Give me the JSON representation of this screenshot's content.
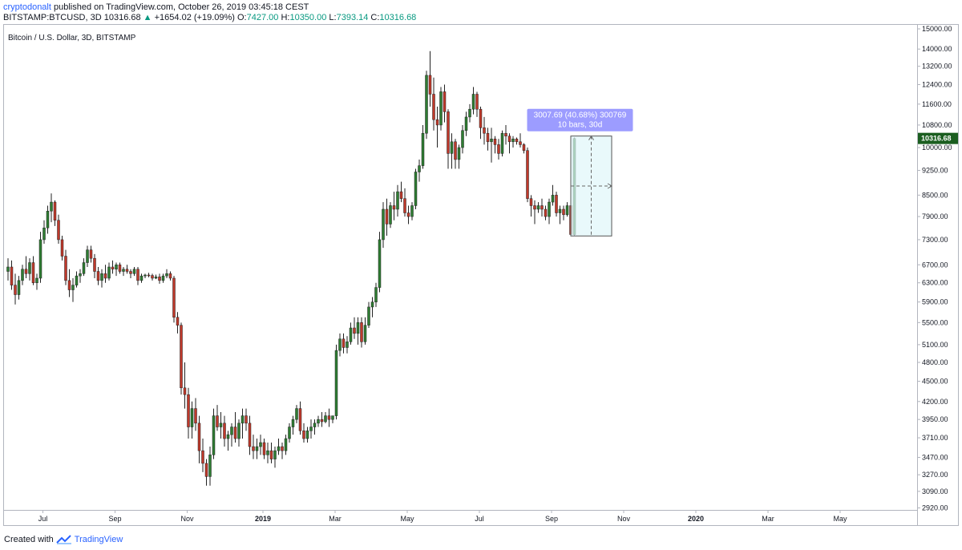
{
  "header": {
    "author": "cryptodonalt",
    "published_text": "published on TradingView.com, October 26, 2019 03:45:18 CEST",
    "symbol": "BITSTAMP:BTCUSD, 3D",
    "last": "10316.68",
    "change": "+1654.02 (+19.09%)",
    "o_label": "O:",
    "o_value": "7427.00",
    "h_label": "H:",
    "h_value": "10350.00",
    "l_label": "L:",
    "l_value": "7393.14",
    "c_label": "C:",
    "c_value": "10316.68"
  },
  "footer": {
    "created_with": "Created with",
    "brand": "TradingView"
  },
  "colors": {
    "up": "#26a69a",
    "up_body": "#2e7d32",
    "down_body": "#c0392b",
    "wick": "#222222",
    "price_tag": "#1b5e20",
    "measure_label_bg": "#9c9cff",
    "measure_box": "#e0f7fa"
  },
  "chart_data": {
    "type": "candlestick",
    "title": "Bitcoin / U.S. Dollar, 3D, BITSTAMP",
    "y_scale": "log",
    "ylim": [
      2900,
      15000
    ],
    "y_ticks": [
      15000,
      14000,
      13200,
      12400,
      11600,
      10800,
      10000,
      9250,
      8500,
      7900,
      7300,
      6700,
      6300,
      5900,
      5500,
      5100,
      4800,
      4500,
      4200,
      3950,
      3710,
      3470,
      3270,
      3090,
      2920
    ],
    "y_tick_labels": [
      "15000.00",
      "14000.00",
      "13200.00",
      "12400.00",
      "11600.00",
      "10800.00",
      "10000.00",
      "9250.00",
      "8500.00",
      "7900.00",
      "7300.00",
      "6700.00",
      "6300.00",
      "5900.00",
      "5500.00",
      "5100.00",
      "4800.00",
      "4500.00",
      "4200.00",
      "3950.00",
      "3710.00",
      "3470.00",
      "3270.00",
      "3090.00",
      "2920.00"
    ],
    "x_ticks": [
      {
        "label": "Jul",
        "bar": 7
      },
      {
        "label": "Sep",
        "bar": 27
      },
      {
        "label": "Nov",
        "bar": 47
      },
      {
        "label": "2019",
        "bar": 68
      },
      {
        "label": "Mar",
        "bar": 88
      },
      {
        "label": "May",
        "bar": 108
      },
      {
        "label": "Jul",
        "bar": 128
      },
      {
        "label": "Sep",
        "bar": 148
      },
      {
        "label": "Nov",
        "bar": 168
      },
      {
        "label": "2020",
        "bar": 188
      },
      {
        "label": "Mar",
        "bar": 208
      },
      {
        "label": "May",
        "bar": 228
      }
    ],
    "last_price": 10316.68,
    "last_price_label": "10316.68",
    "first_bar_date": "2018-06-23",
    "bar_period_days": 3,
    "ohlc": [
      [
        6550,
        6850,
        6350,
        6650
      ],
      [
        6650,
        6800,
        6150,
        6250
      ],
      [
        6250,
        6500,
        5850,
        6050
      ],
      [
        6050,
        6450,
        5950,
        6350
      ],
      [
        6350,
        6700,
        6250,
        6600
      ],
      [
        6600,
        6900,
        6400,
        6500
      ],
      [
        6500,
        6850,
        6350,
        6750
      ],
      [
        6750,
        6900,
        6250,
        6300
      ],
      [
        6300,
        6500,
        6150,
        6400
      ],
      [
        6400,
        7500,
        6300,
        7300
      ],
      [
        7300,
        7800,
        7200,
        7600
      ],
      [
        7600,
        8200,
        7450,
        8050
      ],
      [
        8050,
        8550,
        7750,
        8300
      ],
      [
        8300,
        8350,
        7650,
        7800
      ],
      [
        7800,
        7950,
        7200,
        7300
      ],
      [
        7300,
        7400,
        6800,
        6900
      ],
      [
        6900,
        7050,
        6250,
        6350
      ],
      [
        6350,
        6600,
        6000,
        6150
      ],
      [
        6150,
        6400,
        5900,
        6250
      ],
      [
        6250,
        6550,
        6200,
        6450
      ],
      [
        6450,
        6600,
        6300,
        6500
      ],
      [
        6500,
        6850,
        6450,
        6750
      ],
      [
        6750,
        7150,
        6650,
        7050
      ],
      [
        7050,
        7150,
        6750,
        6850
      ],
      [
        6850,
        6950,
        6400,
        6550
      ],
      [
        6550,
        6650,
        6250,
        6350
      ],
      [
        6350,
        6600,
        6200,
        6500
      ],
      [
        6500,
        6700,
        6300,
        6400
      ],
      [
        6400,
        6750,
        6350,
        6650
      ],
      [
        6650,
        6800,
        6500,
        6600
      ],
      [
        6600,
        6750,
        6450,
        6700
      ],
      [
        6700,
        6750,
        6500,
        6550
      ],
      [
        6550,
        6650,
        6450,
        6600
      ],
      [
        6600,
        6700,
        6500,
        6550
      ],
      [
        6550,
        6600,
        6400,
        6500
      ],
      [
        6500,
        6650,
        6450,
        6600
      ],
      [
        6600,
        6650,
        6250,
        6350
      ],
      [
        6350,
        6500,
        6300,
        6450
      ],
      [
        6450,
        6500,
        6400,
        6470
      ],
      [
        6470,
        6520,
        6420,
        6460
      ],
      [
        6460,
        6500,
        6350,
        6400
      ],
      [
        6400,
        6480,
        6380,
        6430
      ],
      [
        6430,
        6500,
        6280,
        6350
      ],
      [
        6350,
        6500,
        6300,
        6450
      ],
      [
        6450,
        6600,
        6400,
        6500
      ],
      [
        6500,
        6550,
        6350,
        6400
      ],
      [
        6400,
        6450,
        5500,
        5600
      ],
      [
        5600,
        5700,
        5300,
        5450
      ],
      [
        5450,
        5500,
        4300,
        4400
      ],
      [
        4400,
        4800,
        4100,
        4300
      ],
      [
        4300,
        4400,
        3700,
        3850
      ],
      [
        3850,
        4200,
        3700,
        4100
      ],
      [
        4100,
        4250,
        3800,
        3900
      ],
      [
        3900,
        4000,
        3400,
        3550
      ],
      [
        3550,
        3700,
        3300,
        3400
      ],
      [
        3400,
        3450,
        3150,
        3250
      ],
      [
        3250,
        3600,
        3150,
        3500
      ],
      [
        3500,
        4100,
        3450,
        4000
      ],
      [
        4000,
        4150,
        3800,
        3850
      ],
      [
        3850,
        4050,
        3700,
        3900
      ],
      [
        3900,
        4000,
        3600,
        3700
      ],
      [
        3700,
        3800,
        3550,
        3750
      ],
      [
        3750,
        3900,
        3600,
        3850
      ],
      [
        3850,
        4050,
        3650,
        3700
      ],
      [
        3700,
        3950,
        3600,
        3900
      ],
      [
        3900,
        4100,
        3700,
        4000
      ],
      [
        4000,
        4100,
        3800,
        3900
      ],
      [
        3900,
        4000,
        3500,
        3600
      ],
      [
        3600,
        3750,
        3450,
        3550
      ],
      [
        3550,
        3700,
        3450,
        3600
      ],
      [
        3600,
        3750,
        3500,
        3650
      ],
      [
        3650,
        3700,
        3450,
        3500
      ],
      [
        3500,
        3650,
        3400,
        3550
      ],
      [
        3550,
        3650,
        3400,
        3450
      ],
      [
        3450,
        3600,
        3350,
        3550
      ],
      [
        3550,
        3700,
        3500,
        3600
      ],
      [
        3600,
        3650,
        3450,
        3550
      ],
      [
        3550,
        3750,
        3500,
        3700
      ],
      [
        3700,
        3900,
        3650,
        3850
      ],
      [
        3850,
        4000,
        3750,
        3950
      ],
      [
        3950,
        4150,
        3900,
        4100
      ],
      [
        4100,
        4200,
        3750,
        3800
      ],
      [
        3800,
        3900,
        3650,
        3700
      ],
      [
        3700,
        3850,
        3650,
        3800
      ],
      [
        3800,
        3950,
        3700,
        3850
      ],
      [
        3850,
        3950,
        3750,
        3900
      ],
      [
        3900,
        4000,
        3850,
        3950
      ],
      [
        3950,
        4050,
        3850,
        3920
      ],
      [
        3920,
        4050,
        3900,
        4000
      ],
      [
        4000,
        4100,
        3850,
        3950
      ],
      [
        3950,
        4000,
        3900,
        4000
      ],
      [
        4000,
        5100,
        3950,
        5000
      ],
      [
        5000,
        5300,
        4900,
        5200
      ],
      [
        5200,
        5300,
        4950,
        5050
      ],
      [
        5050,
        5250,
        4950,
        5150
      ],
      [
        5150,
        5500,
        5100,
        5400
      ],
      [
        5400,
        5600,
        5200,
        5300
      ],
      [
        5300,
        5600,
        5100,
        5500
      ],
      [
        5500,
        5600,
        5050,
        5150
      ],
      [
        5150,
        5600,
        5100,
        5450
      ],
      [
        5450,
        5900,
        5400,
        5800
      ],
      [
        5800,
        6000,
        5600,
        5900
      ],
      [
        5900,
        6300,
        5800,
        6200
      ],
      [
        6200,
        7500,
        6100,
        7300
      ],
      [
        7300,
        8300,
        7100,
        8100
      ],
      [
        8100,
        8400,
        7400,
        7700
      ],
      [
        7700,
        8300,
        7600,
        8200
      ],
      [
        8200,
        8600,
        7800,
        8100
      ],
      [
        8100,
        8800,
        7900,
        8600
      ],
      [
        8600,
        8900,
        8300,
        8400
      ],
      [
        8400,
        8700,
        7900,
        8000
      ],
      [
        8000,
        8200,
        7700,
        7900
      ],
      [
        7900,
        8300,
        7800,
        8200
      ],
      [
        8200,
        9300,
        8100,
        9200
      ],
      [
        9200,
        9600,
        8900,
        9400
      ],
      [
        9400,
        10800,
        9300,
        10500
      ],
      [
        10500,
        13000,
        10300,
        12800
      ],
      [
        12800,
        13900,
        11500,
        12000
      ],
      [
        12000,
        12700,
        10600,
        11000
      ],
      [
        11000,
        11500,
        10000,
        10800
      ],
      [
        10800,
        12300,
        10600,
        12100
      ],
      [
        12100,
        12400,
        10900,
        11300
      ],
      [
        11300,
        11400,
        9300,
        9800
      ],
      [
        9800,
        10500,
        9300,
        10200
      ],
      [
        10200,
        10300,
        9300,
        9600
      ],
      [
        9600,
        10100,
        9300,
        10000
      ],
      [
        10000,
        10800,
        9800,
        10600
      ],
      [
        10600,
        11300,
        10400,
        11100
      ],
      [
        11100,
        11600,
        10900,
        11400
      ],
      [
        11400,
        12300,
        11200,
        12000
      ],
      [
        12000,
        12100,
        11100,
        11400
      ],
      [
        11400,
        11500,
        10300,
        10700
      ],
      [
        10700,
        11100,
        10100,
        10500
      ],
      [
        10500,
        10700,
        9900,
        10200
      ],
      [
        10200,
        10700,
        9500,
        10300
      ],
      [
        10300,
        10400,
        9800,
        10100
      ],
      [
        10100,
        10300,
        9600,
        9800
      ],
      [
        9800,
        10600,
        9700,
        10500
      ],
      [
        10500,
        10800,
        10100,
        10400
      ],
      [
        10400,
        10500,
        9800,
        10200
      ],
      [
        10200,
        10400,
        10000,
        10300
      ],
      [
        10300,
        10350,
        10100,
        10200
      ],
      [
        10200,
        10500,
        10000,
        10100
      ],
      [
        10100,
        10150,
        9800,
        9900
      ],
      [
        9900,
        10000,
        8300,
        8400
      ],
      [
        8400,
        8500,
        7900,
        8200
      ],
      [
        8200,
        8350,
        7700,
        8100
      ],
      [
        8100,
        8300,
        8000,
        8200
      ],
      [
        8200,
        8400,
        7900,
        8100
      ],
      [
        8100,
        8200,
        7800,
        7900
      ],
      [
        7900,
        8400,
        7700,
        8300
      ],
      [
        8300,
        8800,
        8200,
        8500
      ],
      [
        8500,
        8600,
        7900,
        8000
      ],
      [
        8000,
        8200,
        7700,
        8100
      ],
      [
        8100,
        8200,
        7800,
        7950
      ],
      [
        7950,
        8300,
        7900,
        8200
      ],
      [
        8200,
        8250,
        7400,
        7430
      ],
      [
        7427,
        10350,
        7393.14,
        10316.68
      ]
    ],
    "measure": {
      "start_bar": 156,
      "end_bar": 166,
      "low": 7393.14,
      "high": 10400.83,
      "label_line1": "3007.69 (40.68%) 300769",
      "label_line2": "10 bars, 30d"
    }
  }
}
